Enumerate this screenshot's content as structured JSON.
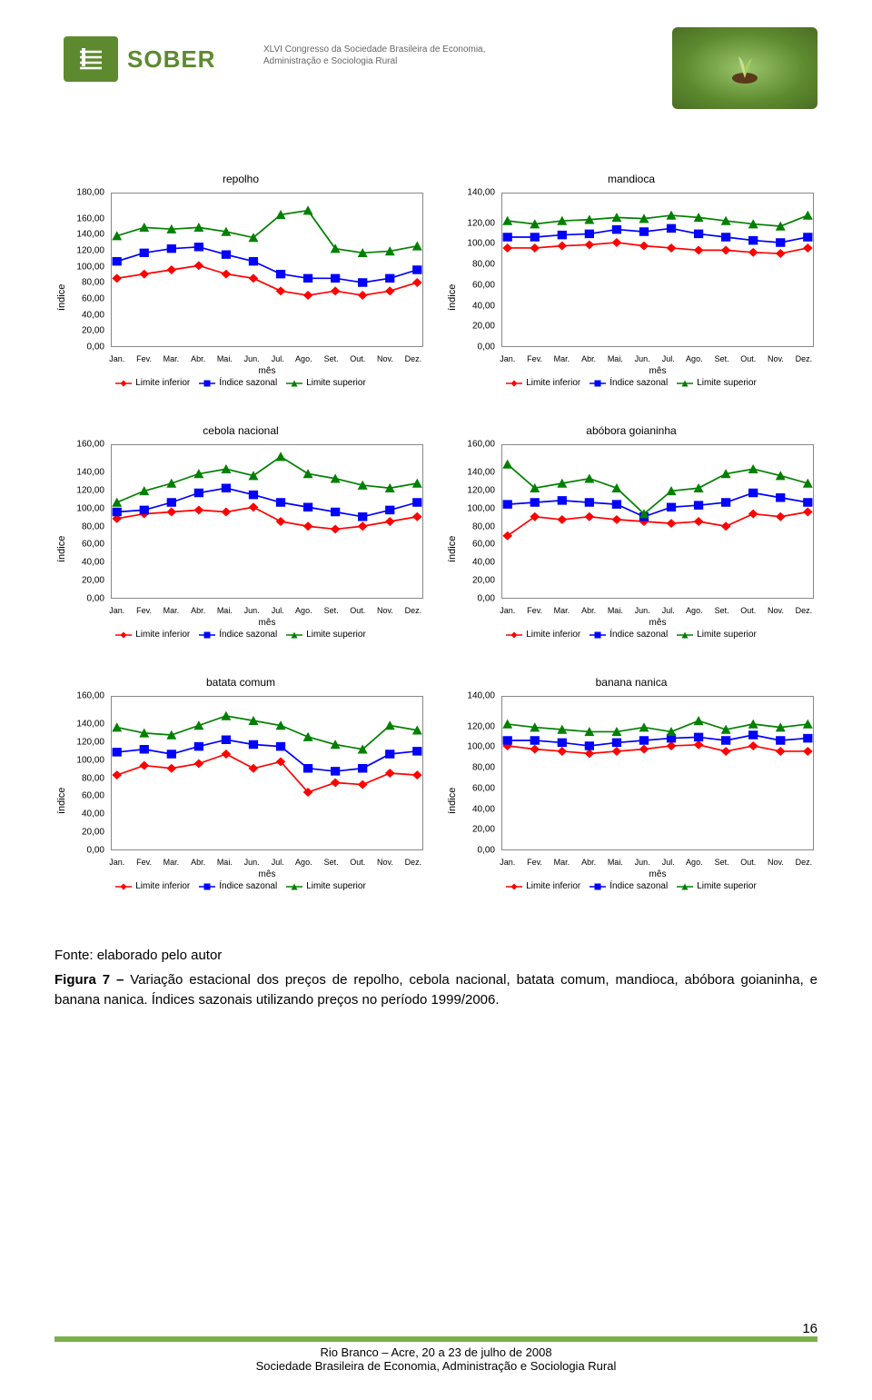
{
  "header": {
    "logo_text": "SOBER",
    "subtitle_line1": "XLVI Congresso da Sociedade Brasileira de Economia,",
    "subtitle_line2": "Administração e Sociologia Rural"
  },
  "months": [
    "Jan.",
    "Fev.",
    "Mar.",
    "Abr.",
    "Mai.",
    "Jun.",
    "Jul.",
    "Ago.",
    "Set.",
    "Out.",
    "Nov.",
    "Dez."
  ],
  "axis": {
    "ylabel": "índice",
    "xlabel": "mês"
  },
  "series_labels": {
    "inferior": "Limite inferior",
    "sazonal": "Índice sazonal",
    "superior": "Limite superior"
  },
  "colors": {
    "inferior": "#ff0000",
    "sazonal": "#0000ff",
    "superior": "#008000",
    "grid_border": "#888888",
    "background": "#ffffff",
    "text": "#000000",
    "brand_green": "#5d8a2e"
  },
  "markers": {
    "inferior": "diamond",
    "sazonal": "square",
    "superior": "triangle"
  },
  "charts": [
    {
      "title": "repolho",
      "ymin": 0,
      "ymax": 180,
      "ystep": 20,
      "inferior": [
        80,
        85,
        90,
        95,
        85,
        80,
        65,
        60,
        65,
        60,
        65,
        75
      ],
      "sazonal": [
        100,
        110,
        115,
        117,
        108,
        100,
        85,
        80,
        80,
        75,
        80,
        90
      ],
      "superior": [
        130,
        140,
        138,
        140,
        135,
        128,
        155,
        160,
        115,
        110,
        112,
        118
      ]
    },
    {
      "title": "mandioca",
      "ymin": 0,
      "ymax": 140,
      "ystep": 20,
      "inferior": [
        90,
        90,
        92,
        93,
        95,
        92,
        90,
        88,
        88,
        86,
        85,
        90
      ],
      "sazonal": [
        100,
        100,
        102,
        103,
        107,
        105,
        108,
        103,
        100,
        97,
        95,
        100
      ],
      "superior": [
        115,
        112,
        115,
        116,
        118,
        117,
        120,
        118,
        115,
        112,
        110,
        120
      ]
    },
    {
      "title": "cebola nacional",
      "ymin": 0,
      "ymax": 160,
      "ystep": 20,
      "inferior": [
        83,
        88,
        90,
        92,
        90,
        95,
        80,
        75,
        72,
        75,
        80,
        85
      ],
      "sazonal": [
        90,
        92,
        100,
        110,
        115,
        108,
        100,
        95,
        90,
        85,
        92,
        100
      ],
      "superior": [
        100,
        112,
        120,
        130,
        135,
        128,
        148,
        130,
        125,
        118,
        115,
        120
      ]
    },
    {
      "title": "abóbora goianinha",
      "ymin": 0,
      "ymax": 160,
      "ystep": 20,
      "inferior": [
        65,
        85,
        82,
        85,
        82,
        80,
        78,
        80,
        75,
        88,
        85,
        90
      ],
      "sazonal": [
        98,
        100,
        102,
        100,
        98,
        85,
        95,
        97,
        100,
        110,
        105,
        100
      ],
      "superior": [
        140,
        115,
        120,
        125,
        115,
        88,
        112,
        115,
        130,
        135,
        128,
        120
      ]
    },
    {
      "title": "batata comum",
      "ymin": 0,
      "ymax": 160,
      "ystep": 20,
      "inferior": [
        78,
        88,
        85,
        90,
        100,
        85,
        92,
        60,
        70,
        68,
        80,
        78
      ],
      "sazonal": [
        102,
        105,
        100,
        108,
        115,
        110,
        108,
        85,
        82,
        85,
        100,
        103
      ],
      "superior": [
        128,
        122,
        120,
        130,
        140,
        135,
        130,
        118,
        110,
        105,
        130,
        125
      ]
    },
    {
      "title": "banana nanica",
      "ymin": 0,
      "ymax": 140,
      "ystep": 20,
      "inferior": [
        95,
        92,
        90,
        88,
        90,
        92,
        95,
        96,
        90,
        95,
        90,
        90
      ],
      "sazonal": [
        100,
        100,
        98,
        95,
        98,
        100,
        102,
        103,
        100,
        105,
        100,
        102
      ],
      "superior": [
        115,
        112,
        110,
        108,
        108,
        112,
        108,
        118,
        110,
        115,
        112,
        115
      ]
    }
  ],
  "caption": {
    "fonte": "Fonte: elaborado pelo autor",
    "fig_label": "Figura 7 –",
    "fig_text": "Variação estacional dos preços de repolho, cebola nacional, batata comum, mandioca, abóbora goianinha, e banana nanica. Índices sazonais utilizando preços no período 1999/2006."
  },
  "footer": {
    "line1": "Rio Branco – Acre, 20 a 23 de julho de 2008",
    "line2": "Sociedade Brasileira de Economia, Administração e Sociologia Rural"
  },
  "page_number": "16",
  "line_width": 1.6,
  "marker_size": 4
}
